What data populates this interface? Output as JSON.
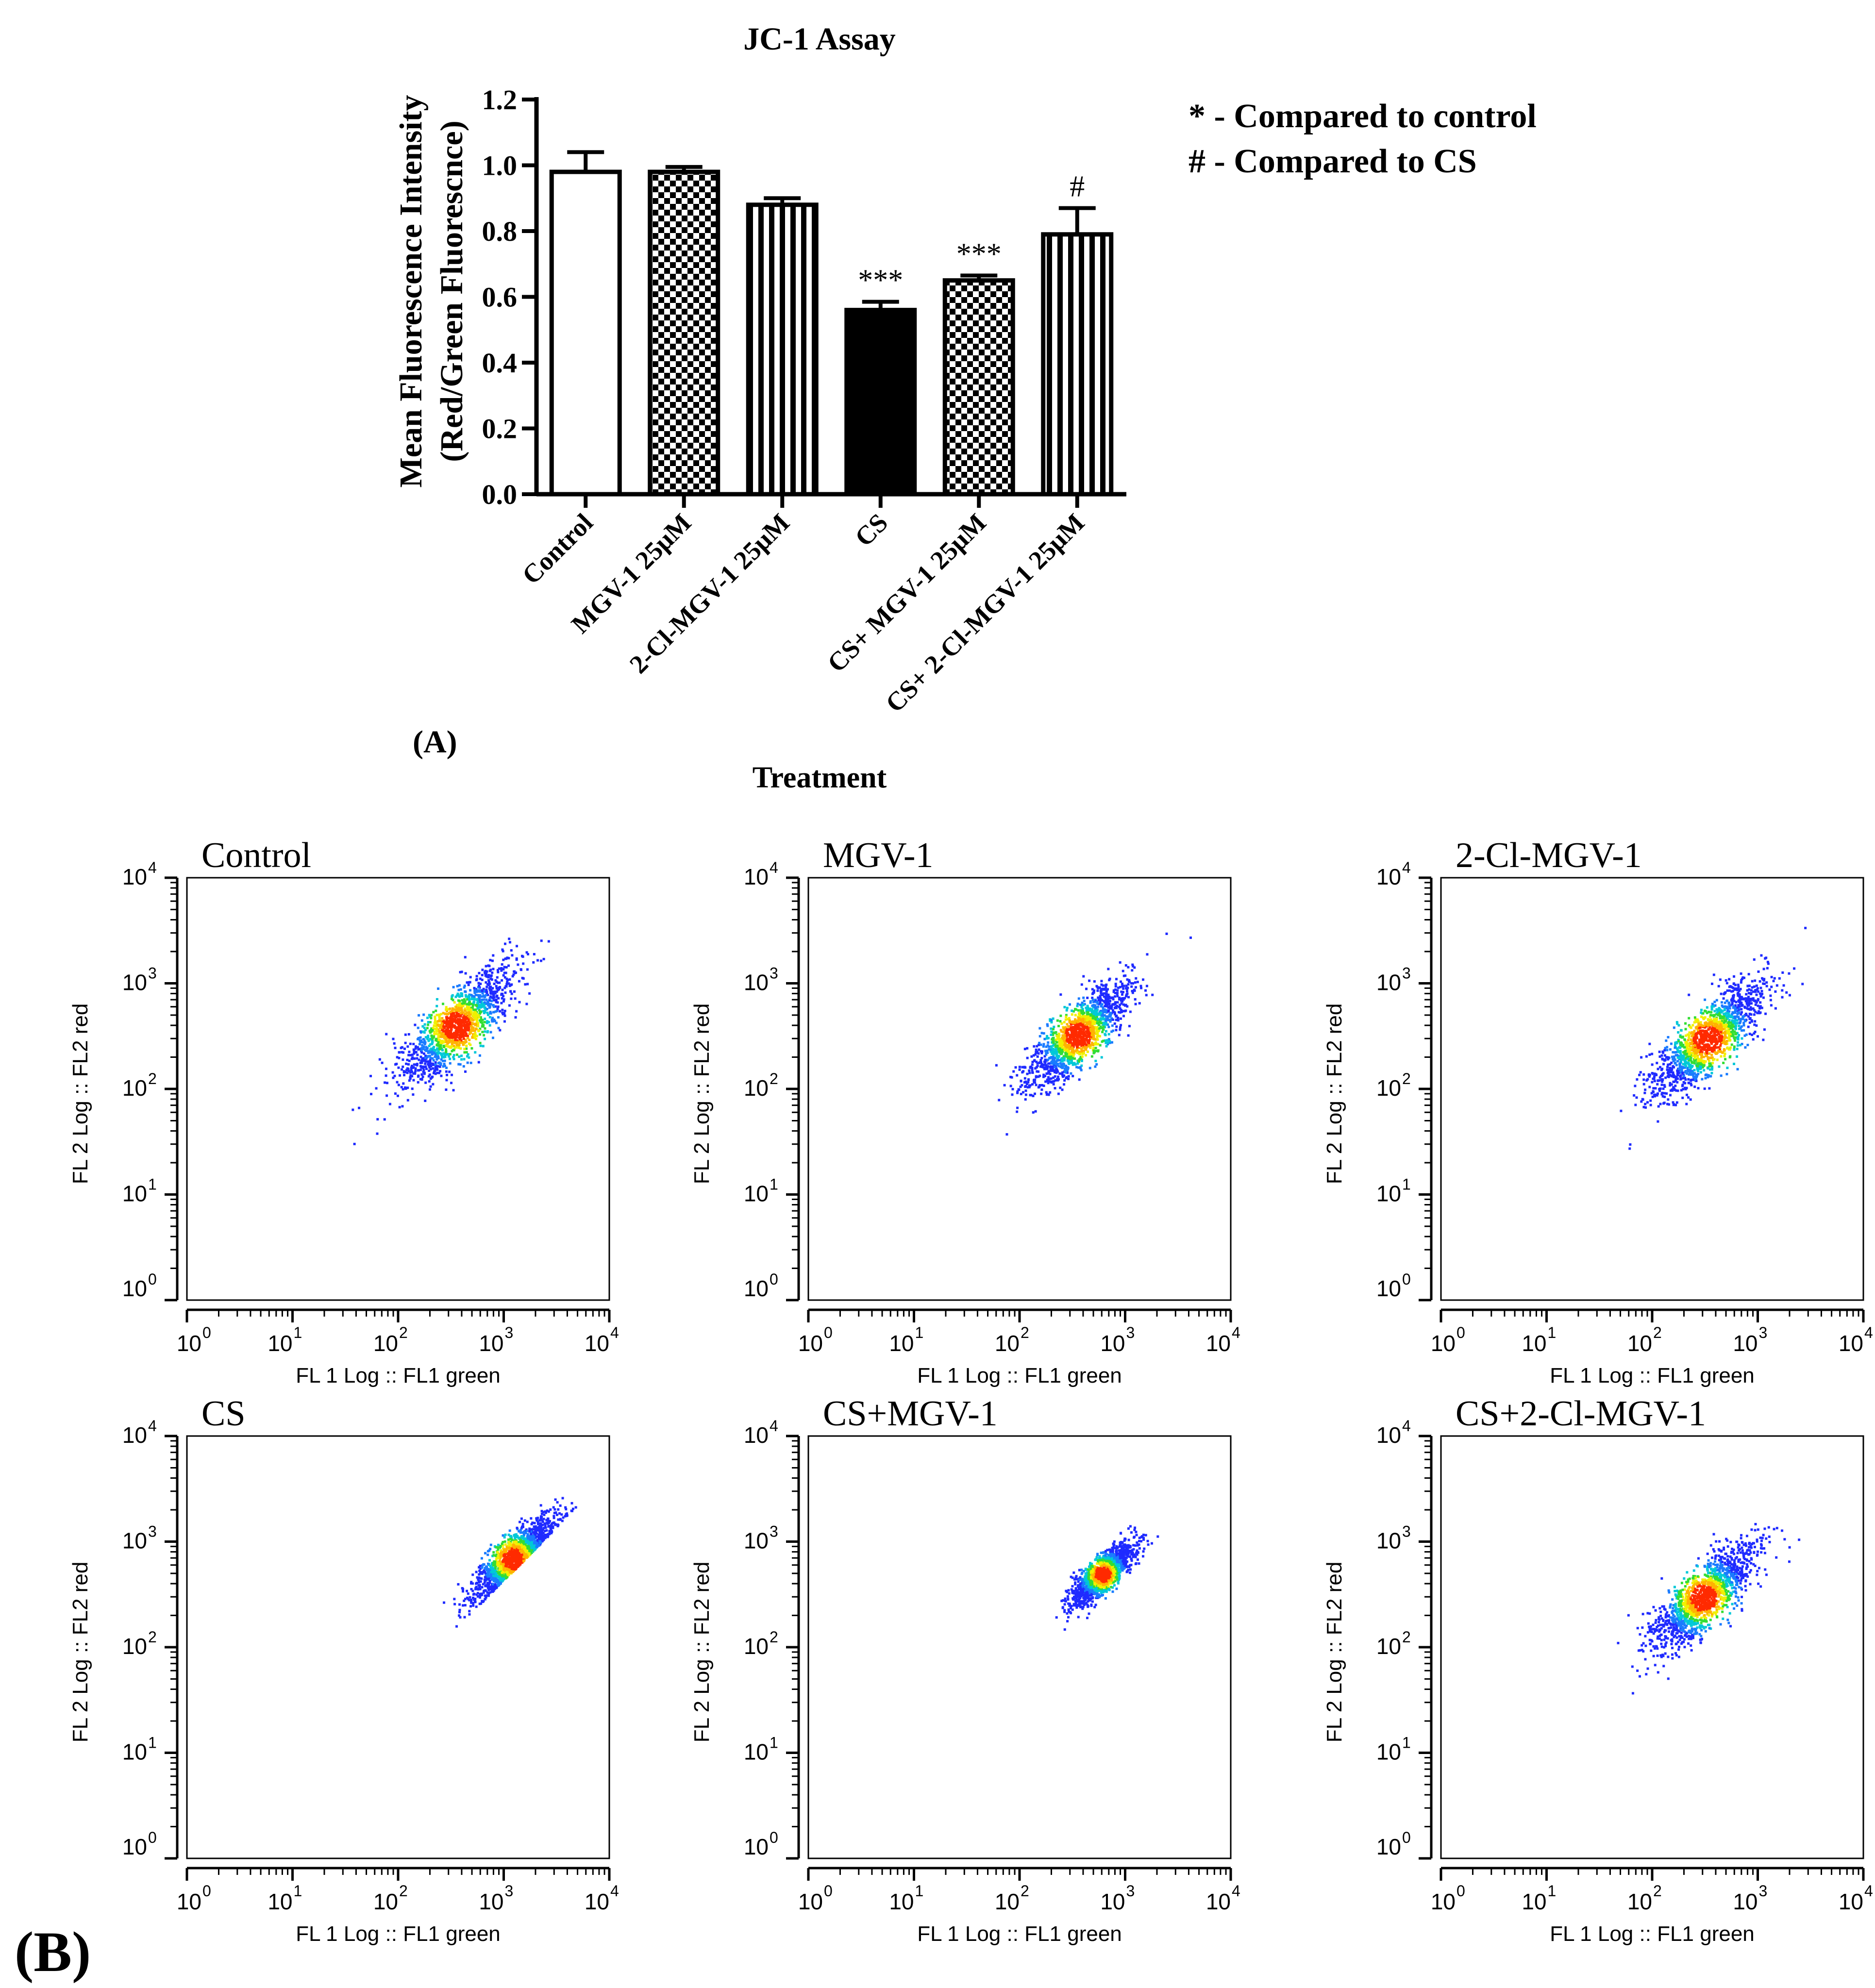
{
  "chart_data": [
    {
      "panel_label": "(A)",
      "type": "bar",
      "title": "JC-1 Assay",
      "xlabel": "Treatment",
      "ylabel_line1": "Mean Fluorescence Intensity",
      "ylabel_line2": "(Red/Green Fluorescnce)",
      "ylim": [
        0,
        1.2
      ],
      "yticks": [
        "0.0",
        "0.2",
        "0.4",
        "0.6",
        "0.8",
        "1.0",
        "1.2"
      ],
      "categories": [
        "Control",
        "MGV-1 25μM",
        "2-Cl-MGV-1 25μM",
        "CS",
        "CS+ MGV-1 25μM",
        "CS+ 2-Cl-MGV-1 25μM"
      ],
      "values": [
        0.98,
        0.98,
        0.88,
        0.56,
        0.65,
        0.79
      ],
      "errors": [
        0.06,
        0.015,
        0.02,
        0.025,
        0.015,
        0.08
      ],
      "patterns": [
        "white",
        "checker",
        "vstripe",
        "black",
        "checker",
        "vstripe"
      ],
      "annotations": [
        "",
        "",
        "",
        "***",
        "***",
        "#"
      ],
      "legend_lines": [
        "* - Compared to control",
        "# - Compared to CS"
      ]
    },
    {
      "panel_label": "(B)",
      "type": "scatter",
      "xlabel": "FL 1 Log :: FL1 green",
      "ylabel": "FL 2 Log :: FL2 red",
      "scale": "log",
      "xlim": [
        1,
        10000
      ],
      "ylim": [
        1,
        10000
      ],
      "tick_base": "10",
      "tick_exponents": [
        "0",
        "1",
        "2",
        "3",
        "4"
      ],
      "plots": [
        {
          "title": "Control",
          "center": [
            350,
            400
          ],
          "lower_diag": 0.7,
          "upper_diag": 1.8,
          "spread": 0.55,
          "range_x": [
            20,
            5000
          ]
        },
        {
          "title": "MGV-1",
          "center": [
            350,
            330
          ],
          "lower_diag": 0.65,
          "upper_diag": 1.7,
          "spread": 0.5,
          "range_x": [
            30,
            5000
          ]
        },
        {
          "title": "2-Cl-MGV-1",
          "center": [
            330,
            300
          ],
          "lower_diag": 0.6,
          "upper_diag": 1.6,
          "spread": 0.55,
          "range_x": [
            30,
            3000
          ]
        },
        {
          "title": "CS",
          "center": [
            1200,
            700
          ],
          "lower_diag": 0.35,
          "upper_diag": 0.7,
          "spread": 0.4,
          "range_x": [
            150,
            5000
          ]
        },
        {
          "title": "CS+MGV-1",
          "center": [
            600,
            500
          ],
          "lower_diag": 0.55,
          "upper_diag": 1.0,
          "spread": 0.3,
          "range_x": [
            200,
            5000
          ]
        },
        {
          "title": "CS+2-Cl-MGV-1",
          "center": [
            300,
            300
          ],
          "lower_diag": 0.55,
          "upper_diag": 1.6,
          "spread": 0.5,
          "range_x": [
            40,
            3000
          ]
        }
      ]
    }
  ],
  "colors": {
    "ink": "#000000",
    "density_low": "#1f2bff",
    "density_mid": "#00c8c8",
    "density_high": "#ffe000",
    "density_peak": "#ff2000"
  }
}
